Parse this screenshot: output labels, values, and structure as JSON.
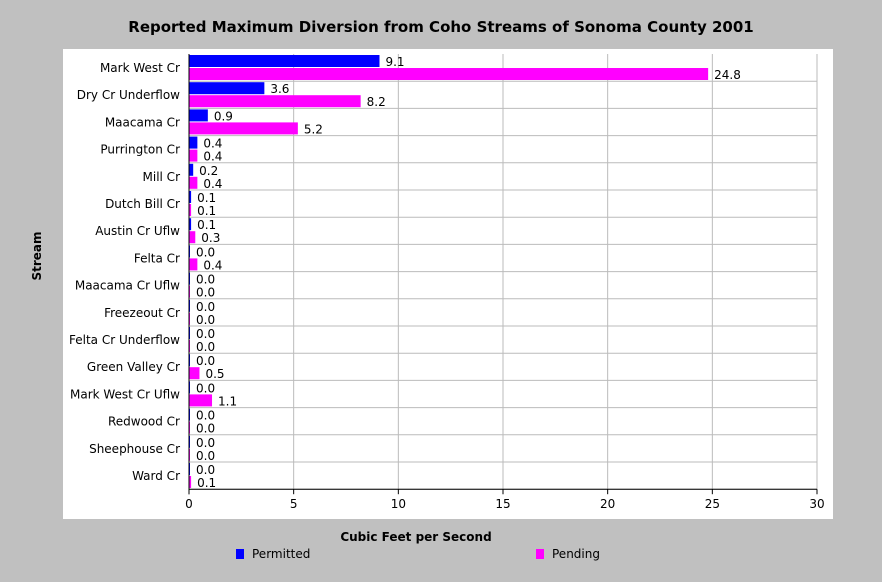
{
  "chart_data": {
    "type": "bar",
    "orientation": "horizontal",
    "title": "Reported Maximum Diversion from Coho Streams of Sonoma County 2001",
    "xlabel": "Cubic Feet per Second",
    "ylabel": "Stream",
    "xlim": [
      0,
      30
    ],
    "xticks": [
      0,
      5,
      10,
      15,
      20,
      25,
      30
    ],
    "grid": true,
    "legend_position": "bottom",
    "categories": [
      "Mark West Cr",
      "Dry Cr Underflow",
      "Maacama Cr",
      "Purrington Cr",
      "Mill Cr",
      "Dutch Bill Cr",
      "Austin Cr Uflw",
      "Felta Cr",
      "Maacama Cr Uflw",
      "Freezeout Cr",
      "Felta Cr Underflow",
      "Green Valley Cr",
      "Mark West Cr Uflw",
      "Redwood Cr",
      "Sheephouse Cr",
      "Ward Cr"
    ],
    "series": [
      {
        "name": "Permitted",
        "color": "#0000ff",
        "values": [
          9.1,
          3.6,
          0.9,
          0.4,
          0.2,
          0.1,
          0.1,
          0.0,
          0.0,
          0.0,
          0.0,
          0.0,
          0.0,
          0.0,
          0.0,
          0.0
        ]
      },
      {
        "name": "Pending",
        "color": "#ff00ff",
        "values": [
          24.8,
          8.2,
          5.2,
          0.4,
          0.4,
          0.1,
          0.3,
          0.4,
          0.0,
          0.0,
          0.0,
          0.5,
          1.1,
          0.0,
          0.0,
          0.1
        ]
      }
    ]
  }
}
